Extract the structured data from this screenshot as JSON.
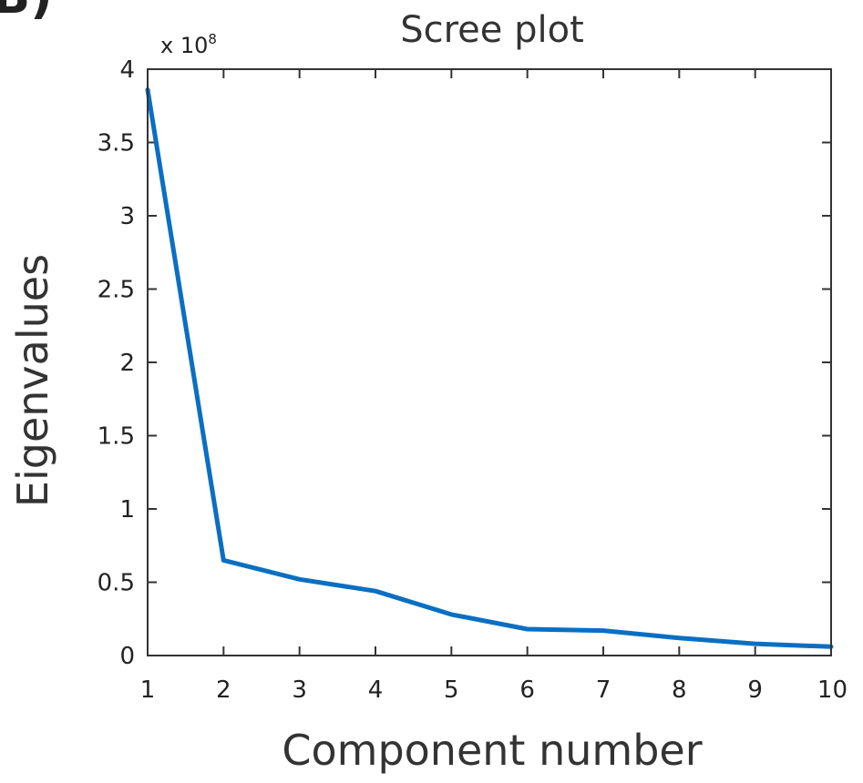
{
  "panel_label": "B)",
  "chart_data": {
    "type": "line",
    "title": "Scree plot",
    "xlabel": "Component number",
    "ylabel": "Eigenvalues",
    "y_multiplier": "x 10",
    "y_multiplier_exp": "8",
    "xlim": [
      1,
      10
    ],
    "ylim": [
      0,
      4
    ],
    "x_ticks": [
      "1",
      "2",
      "3",
      "4",
      "5",
      "6",
      "7",
      "8",
      "9",
      "10"
    ],
    "y_ticks": [
      "0",
      "0.5",
      "1",
      "1.5",
      "2",
      "2.5",
      "3",
      "3.5",
      "4"
    ],
    "grid": false,
    "series": [
      {
        "color": "#0a6fc2",
        "x": [
          1,
          2,
          3,
          4,
          5,
          6,
          7,
          8,
          9,
          10
        ],
        "y": [
          3.86,
          0.65,
          0.52,
          0.44,
          0.28,
          0.18,
          0.17,
          0.12,
          0.08,
          0.06
        ]
      }
    ]
  }
}
